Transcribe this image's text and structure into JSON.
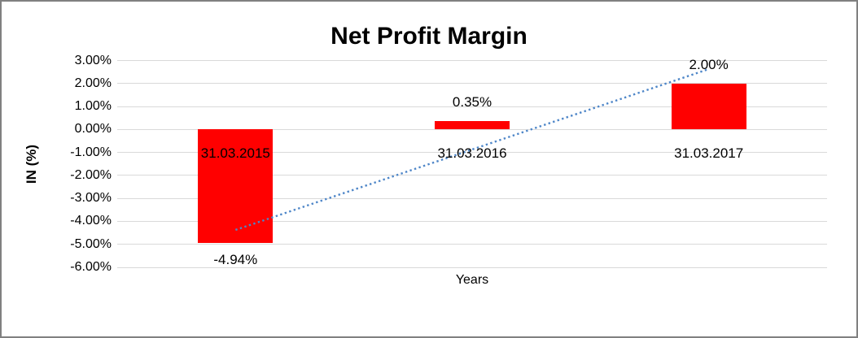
{
  "window": {
    "background": "#ffffff",
    "border_color": "#808080"
  },
  "chart_data": {
    "type": "bar",
    "title": "Net Profit Margin",
    "xlabel": "Years",
    "ylabel": "IN (%)",
    "categories": [
      "31.03.2015",
      "31.03.2016",
      "31.03.2017"
    ],
    "values": [
      -4.94,
      0.35,
      2.0
    ],
    "data_labels": [
      "-4.94%",
      "0.35%",
      "2.00%"
    ],
    "bar_color": "#ff0000",
    "ylim": [
      -6,
      3
    ],
    "ytick_step": 1,
    "yticks": [
      "3.00%",
      "2.00%",
      "1.00%",
      "0.00%",
      "-1.00%",
      "-2.00%",
      "-3.00%",
      "-4.00%",
      "-5.00%",
      "-6.00%"
    ],
    "grid": true,
    "gridline_color": "#d9d9d9",
    "legend": "none",
    "trendline": {
      "type": "linear",
      "style": "dotted",
      "color": "#4e86c8",
      "start_value": -4.37,
      "end_value": 2.63
    }
  }
}
